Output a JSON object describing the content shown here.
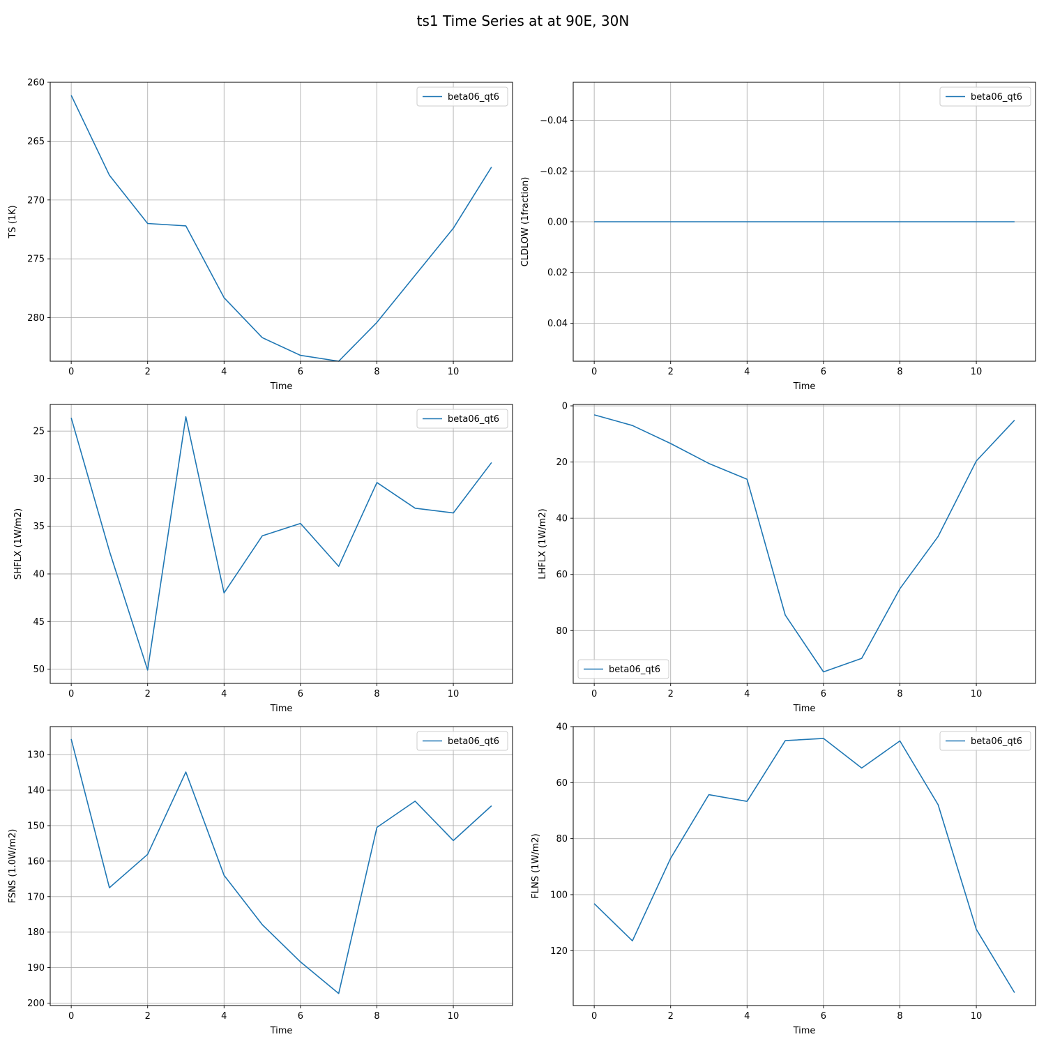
{
  "figure": {
    "title": "ts1 Time Series at at 90E, 30N",
    "line_color": "#1f77b4",
    "grid_color": "#b0b0b0"
  },
  "chart_data": [
    {
      "type": "line",
      "xlabel": "Time",
      "ylabel": "TS (1K)",
      "inverted_y": true,
      "xlim": [
        -0.55,
        11.55
      ],
      "ylim": [
        260,
        283.7
      ],
      "xticks": [
        0,
        2,
        4,
        6,
        8,
        10
      ],
      "yticks": [
        260,
        265,
        270,
        275,
        280
      ],
      "grid": true,
      "legend": "upper right",
      "series": [
        {
          "name": "beta06_qt6",
          "x": [
            0,
            1,
            2,
            3,
            4,
            5,
            6,
            7,
            8,
            9,
            10,
            11
          ],
          "values": [
            261.1,
            267.9,
            272.0,
            272.2,
            278.3,
            281.7,
            283.2,
            283.7,
            280.4,
            276.4,
            272.4,
            267.2
          ]
        }
      ]
    },
    {
      "type": "line",
      "xlabel": "Time",
      "ylabel": "CLDLOW (1fraction)",
      "inverted_y": true,
      "xlim": [
        -0.55,
        11.55
      ],
      "ylim": [
        -0.055,
        0.055
      ],
      "xticks": [
        0,
        2,
        4,
        6,
        8,
        10
      ],
      "yticks": [
        -0.04,
        -0.02,
        0.0,
        0.02,
        0.04
      ],
      "ytick_labels": [
        "−0.04",
        "−0.02",
        "0.00",
        "0.02",
        "0.04"
      ],
      "grid": true,
      "legend": "upper right",
      "series": [
        {
          "name": "beta06_qt6",
          "x": [
            0,
            1,
            2,
            3,
            4,
            5,
            6,
            7,
            8,
            9,
            10,
            11
          ],
          "values": [
            0,
            0,
            0,
            0,
            0,
            0,
            0,
            0,
            0,
            0,
            0,
            0
          ]
        }
      ]
    },
    {
      "type": "line",
      "xlabel": "Time",
      "ylabel": "SHFLX (1W/m2)",
      "inverted_y": true,
      "xlim": [
        -0.55,
        11.55
      ],
      "ylim": [
        22.2,
        51.5
      ],
      "xticks": [
        0,
        2,
        4,
        6,
        8,
        10
      ],
      "yticks": [
        25,
        30,
        35,
        40,
        45,
        50
      ],
      "grid": true,
      "legend": "upper right",
      "series": [
        {
          "name": "beta06_qt6",
          "x": [
            0,
            1,
            2,
            3,
            4,
            5,
            6,
            7,
            8,
            9,
            10,
            11
          ],
          "values": [
            23.6,
            37.6,
            50.1,
            23.5,
            42.0,
            36.0,
            34.7,
            39.2,
            30.4,
            33.1,
            33.6,
            28.3
          ]
        }
      ]
    },
    {
      "type": "line",
      "xlabel": "Time",
      "ylabel": "LHFLX (1W/m2)",
      "inverted_y": true,
      "xlim": [
        -0.55,
        11.55
      ],
      "ylim": [
        -0.5,
        98.8
      ],
      "xticks": [
        0,
        2,
        4,
        6,
        8,
        10
      ],
      "yticks": [
        0,
        20,
        40,
        60,
        80
      ],
      "grid": true,
      "legend": "lower left",
      "series": [
        {
          "name": "beta06_qt6",
          "x": [
            0,
            1,
            2,
            3,
            4,
            5,
            6,
            7,
            8,
            9,
            10,
            11
          ],
          "values": [
            3.2,
            7.0,
            13.4,
            20.5,
            26.1,
            74.5,
            94.7,
            89.9,
            65.1,
            46.5,
            19.6,
            5.1
          ]
        }
      ]
    },
    {
      "type": "line",
      "xlabel": "Time",
      "ylabel": "FSNS (1.0W/m2)",
      "inverted_y": true,
      "xlim": [
        -0.55,
        11.55
      ],
      "ylim": [
        122.1,
        200.7
      ],
      "xticks": [
        0,
        2,
        4,
        6,
        8,
        10
      ],
      "yticks": [
        130,
        140,
        150,
        160,
        170,
        180,
        190,
        200
      ],
      "grid": true,
      "legend": "upper right",
      "series": [
        {
          "name": "beta06_qt6",
          "x": [
            0,
            1,
            2,
            3,
            4,
            5,
            6,
            7,
            8,
            9,
            10,
            11
          ],
          "values": [
            125.6,
            167.5,
            158.1,
            134.9,
            164.0,
            177.9,
            188.4,
            197.3,
            150.5,
            143.1,
            154.2,
            144.4
          ]
        }
      ]
    },
    {
      "type": "line",
      "xlabel": "Time",
      "ylabel": "FLNS (1W/m2)",
      "inverted_y": true,
      "xlim": [
        -0.55,
        11.55
      ],
      "ylim": [
        40,
        139.6
      ],
      "xticks": [
        0,
        2,
        4,
        6,
        8,
        10
      ],
      "yticks": [
        40,
        60,
        80,
        100,
        120
      ],
      "grid": true,
      "legend": "upper right",
      "series": [
        {
          "name": "beta06_qt6",
          "x": [
            0,
            1,
            2,
            3,
            4,
            5,
            6,
            7,
            8,
            9,
            10,
            11
          ],
          "values": [
            103.2,
            116.5,
            87.0,
            64.3,
            66.7,
            45.0,
            44.2,
            54.8,
            45.1,
            67.9,
            112.4,
            135.0
          ]
        }
      ]
    }
  ]
}
